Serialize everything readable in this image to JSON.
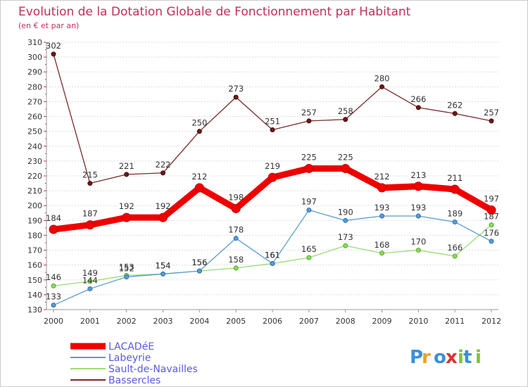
{
  "chart_data": {
    "type": "line",
    "title": "Evolution de la Dotation Globale de Fonctionnement par Habitant",
    "subtitle": "(en € et par an)",
    "xlabel": "",
    "ylabel": "",
    "x": [
      "2000",
      "2001",
      "2002",
      "2003",
      "2004",
      "2005",
      "2006",
      "2007",
      "2008",
      "2009",
      "2010",
      "2011",
      "2012"
    ],
    "ylim": [
      130,
      310
    ],
    "yticks": [
      130,
      140,
      150,
      160,
      170,
      180,
      190,
      200,
      210,
      220,
      230,
      240,
      250,
      260,
      270,
      280,
      290,
      300,
      310
    ],
    "grid": "horizontal dotted",
    "legend_position": "bottom-left",
    "series": [
      {
        "name": "LACADéE",
        "color": "#ee0000",
        "values": [
          184,
          187,
          192,
          192,
          212,
          198,
          219,
          225,
          225,
          212,
          213,
          211,
          197
        ]
      },
      {
        "name": "Labeyrie",
        "color": "#5b9bd5",
        "values": [
          133,
          144,
          152,
          154,
          156,
          178,
          161,
          197,
          190,
          193,
          193,
          189,
          176
        ]
      },
      {
        "name": "Sault-de-Navailles",
        "color": "#99dd77",
        "values": [
          146,
          149,
          153,
          154,
          156,
          158,
          161,
          165,
          173,
          168,
          170,
          166,
          187
        ]
      },
      {
        "name": "Bassercles",
        "color": "#7a2a2a",
        "values": [
          302,
          215,
          221,
          222,
          250,
          273,
          251,
          257,
          258,
          280,
          266,
          262,
          257
        ]
      }
    ]
  },
  "logo": {
    "text": "Proxiti",
    "colors": [
      "#3a8fd8",
      "#f0a020",
      "#3a8fd8",
      "#e03030",
      "#80c040",
      "#3a8fd8",
      "#80c040"
    ]
  }
}
